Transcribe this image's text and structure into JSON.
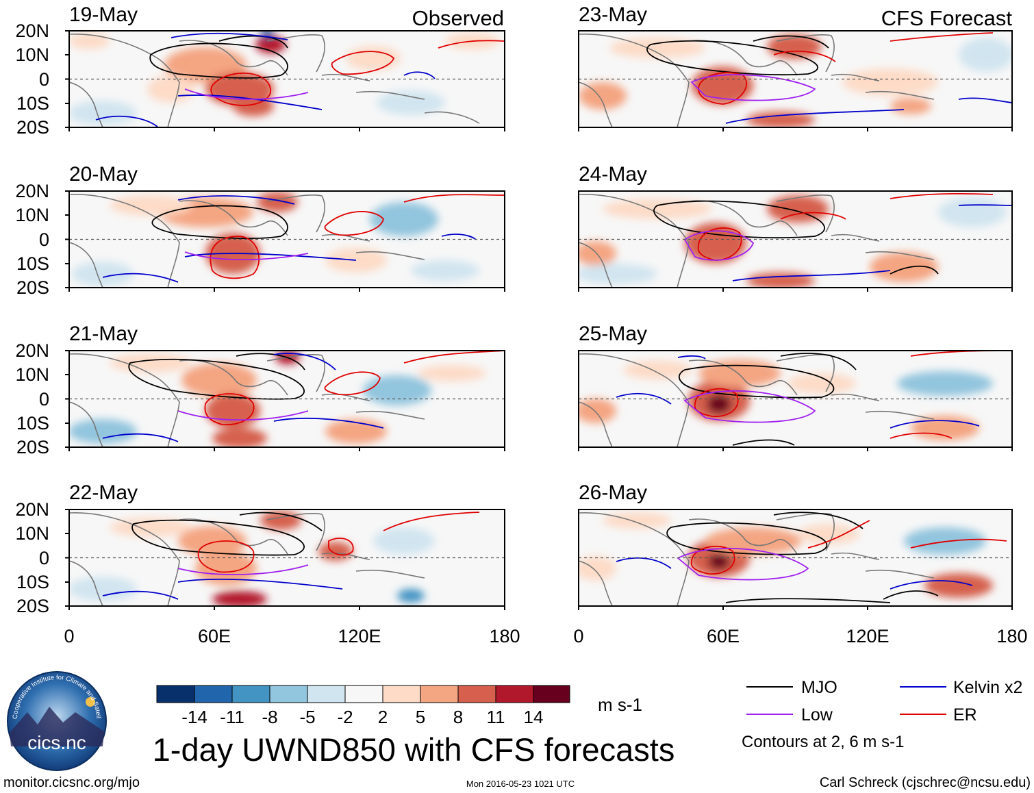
{
  "columns": [
    {
      "label": "Observed",
      "color": "#000000"
    },
    {
      "label": "CFS Forecast",
      "color": "#000000"
    }
  ],
  "panels": [
    {
      "date": "19-May",
      "col": 0,
      "row": 0
    },
    {
      "date": "20-May",
      "col": 0,
      "row": 1
    },
    {
      "date": "21-May",
      "col": 0,
      "row": 2
    },
    {
      "date": "22-May",
      "col": 0,
      "row": 3
    },
    {
      "date": "23-May",
      "col": 1,
      "row": 0
    },
    {
      "date": "24-May",
      "col": 1,
      "row": 1
    },
    {
      "date": "25-May",
      "col": 1,
      "row": 2
    },
    {
      "date": "26-May",
      "col": 1,
      "row": 3
    }
  ],
  "lat_ticks": [
    "20N",
    "10N",
    "0",
    "10S",
    "20S"
  ],
  "lon_ticks": [
    "0",
    "60E",
    "120E",
    "180"
  ],
  "colorbar": {
    "colors": [
      "#08306b",
      "#2166ac",
      "#4393c3",
      "#92c5de",
      "#d1e5f0",
      "#f7f7f7",
      "#fddbc7",
      "#f4a582",
      "#d6604d",
      "#b2182b",
      "#67001f"
    ],
    "labels": [
      "-14",
      "-11",
      "-8",
      "-5",
      "-2",
      "2",
      "5",
      "8",
      "11",
      "14"
    ],
    "units": "m s-1"
  },
  "legend": {
    "items": [
      {
        "label": "MJO",
        "color": "#000000"
      },
      {
        "label": "Kelvin x2",
        "color": "#0000cc"
      },
      {
        "label": "Low",
        "color": "#a020f0"
      },
      {
        "label": "ER",
        "color": "#e00000"
      }
    ],
    "note": "Contours at 2, 6 m s-1"
  },
  "title": "1-day UWND850 with CFS forecasts",
  "logo": {
    "text": "cics.nc",
    "ring": "Cooperative Institute for Climate and Satellites"
  },
  "footer": {
    "left": "monitor.cicsnc.org/mjo",
    "center": "Mon 2016-05-23 1021 UTC",
    "right": "Carl Schreck (cjschrec@ncsu.edu)"
  }
}
